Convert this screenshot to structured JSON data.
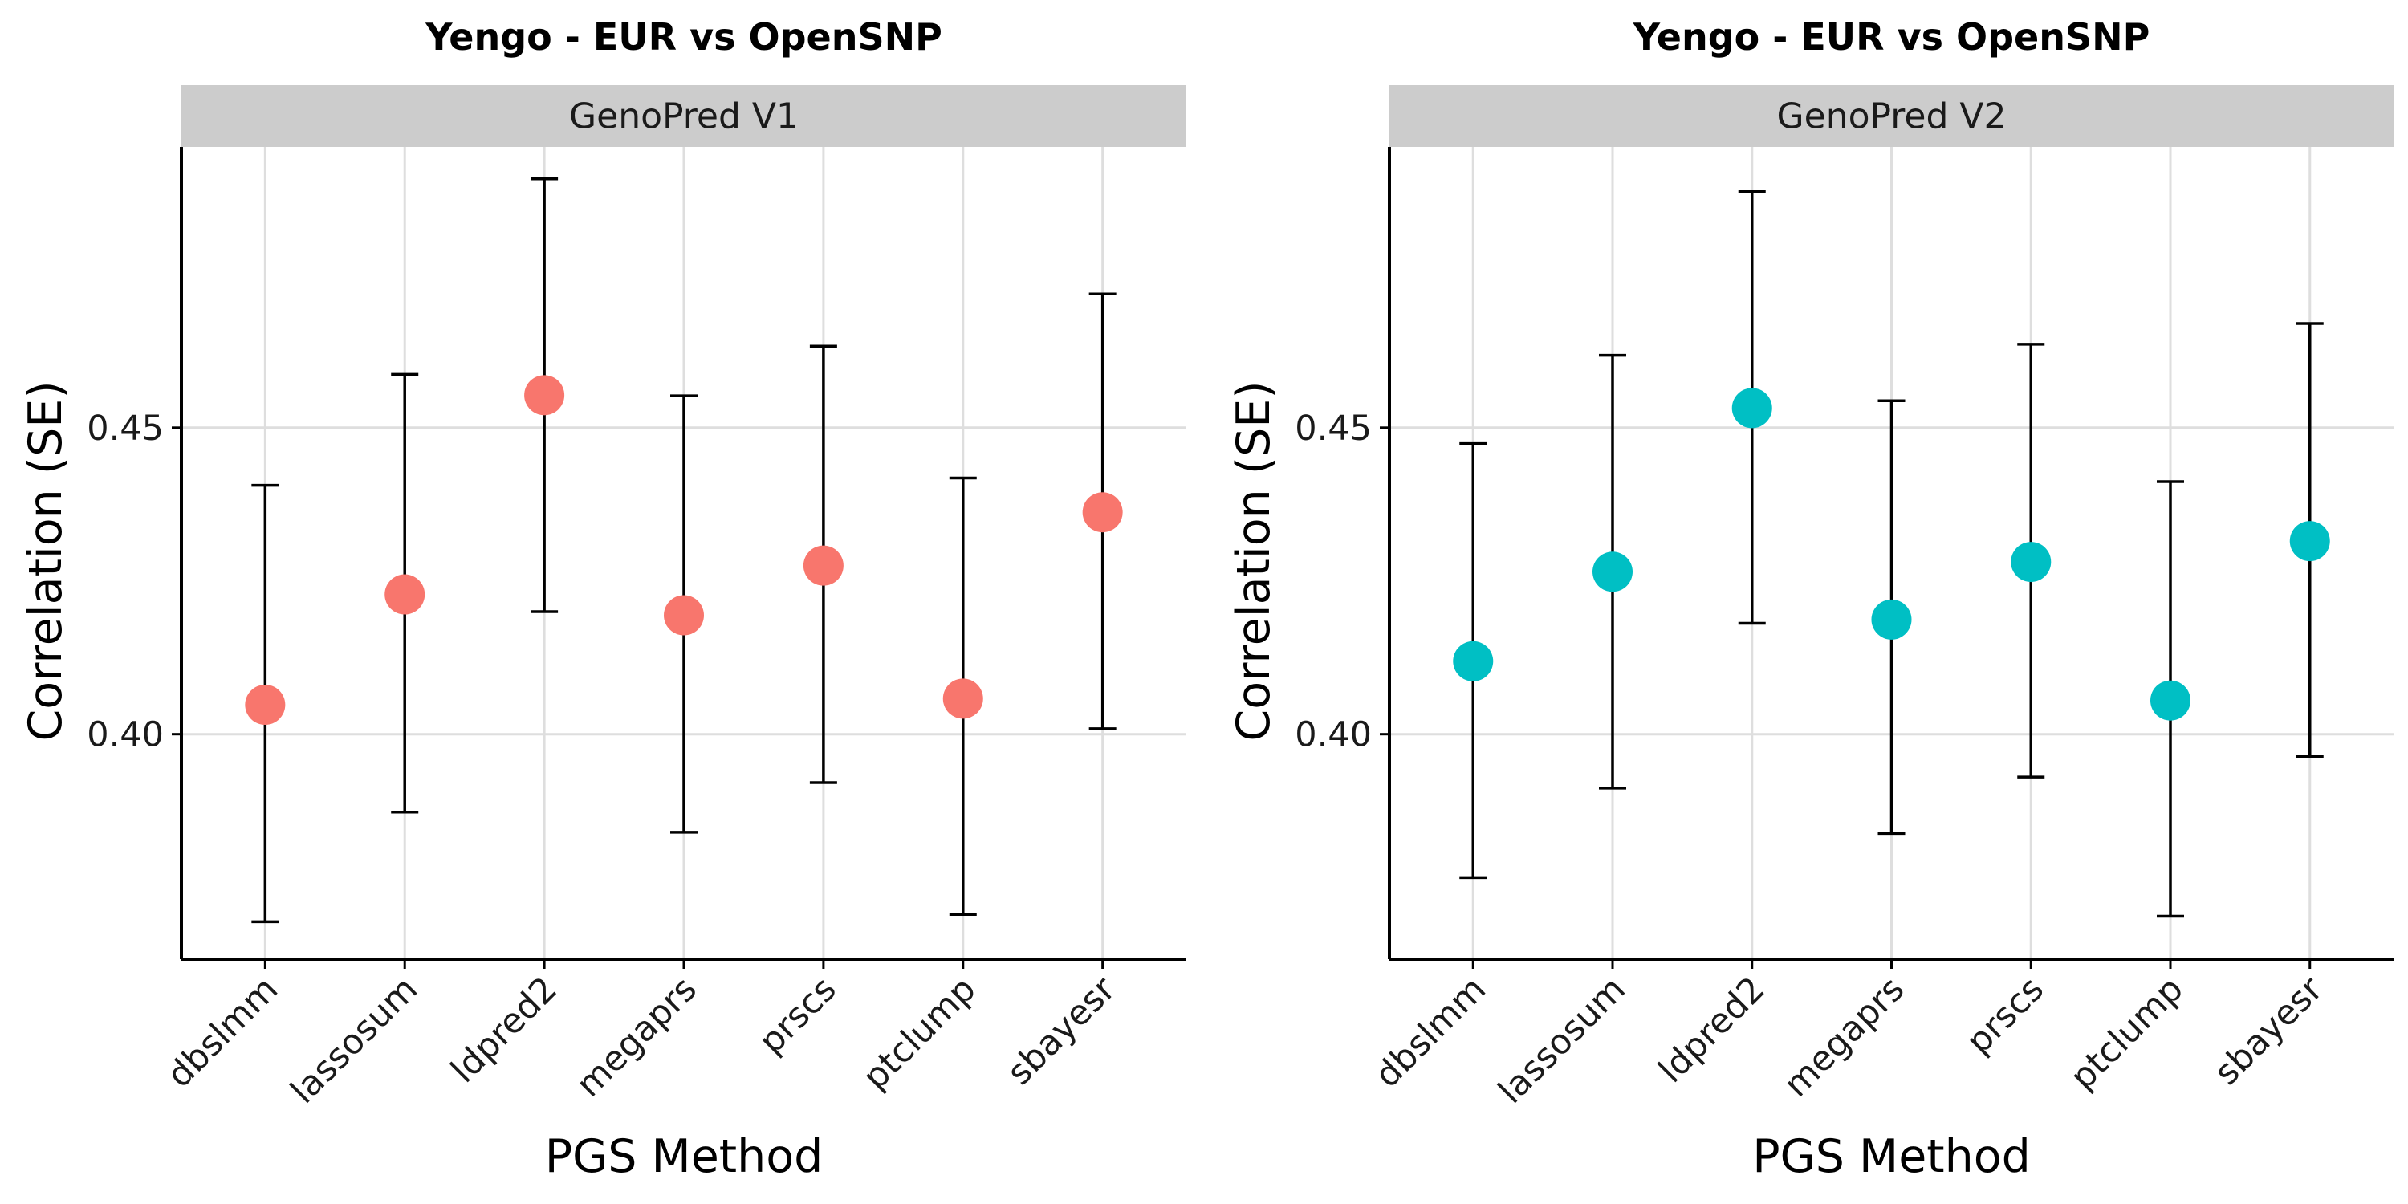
{
  "chart_data": [
    {
      "type": "scatter",
      "title": "Yengo - EUR vs OpenSNP",
      "facet_label": "GenoPred V1",
      "xlabel": "PGS Method",
      "ylabel": "Correlation (SE)",
      "categories": [
        "dbslmm",
        "lassosum",
        "ldpred2",
        "megaprs",
        "prscs",
        "ptclump",
        "sbayesr"
      ],
      "values": [
        0.4048,
        0.4228,
        0.4553,
        0.4194,
        0.4275,
        0.4058,
        0.4362
      ],
      "error_low": [
        0.3694,
        0.3873,
        0.42,
        0.384,
        0.3921,
        0.3706,
        0.4009
      ],
      "error_high": [
        0.4406,
        0.4587,
        0.4906,
        0.4552,
        0.4633,
        0.4418,
        0.4718
      ],
      "ylim": [
        0.3633,
        0.4958
      ],
      "yticks": [
        0.4,
        0.45
      ],
      "ytick_labels": [
        "0.40",
        "0.45"
      ],
      "point_color": "#F8766D",
      "grid": true
    },
    {
      "type": "scatter",
      "title": "Yengo - EUR vs OpenSNP",
      "facet_label": "GenoPred V2",
      "xlabel": "PGS Method",
      "ylabel": "Correlation (SE)",
      "categories": [
        "dbslmm",
        "lassosum",
        "ldpred2",
        "megaprs",
        "prscs",
        "ptclump",
        "sbayesr"
      ],
      "values": [
        0.4119,
        0.4265,
        0.4532,
        0.4187,
        0.4281,
        0.4055,
        0.4315
      ],
      "error_low": [
        0.3766,
        0.3912,
        0.4181,
        0.3838,
        0.393,
        0.3703,
        0.3964
      ],
      "error_high": [
        0.4474,
        0.4618,
        0.4885,
        0.4544,
        0.4636,
        0.4412,
        0.467
      ],
      "ylim": [
        0.3633,
        0.4958
      ],
      "yticks": [
        0.4,
        0.45
      ],
      "ytick_labels": [
        "0.40",
        "0.45"
      ],
      "point_color": "#00BFC4",
      "grid": true
    }
  ],
  "colors": {
    "strip_background": "#cccccc",
    "grid": "#dedede",
    "axis": "#000000",
    "errorbar": "#000000"
  }
}
